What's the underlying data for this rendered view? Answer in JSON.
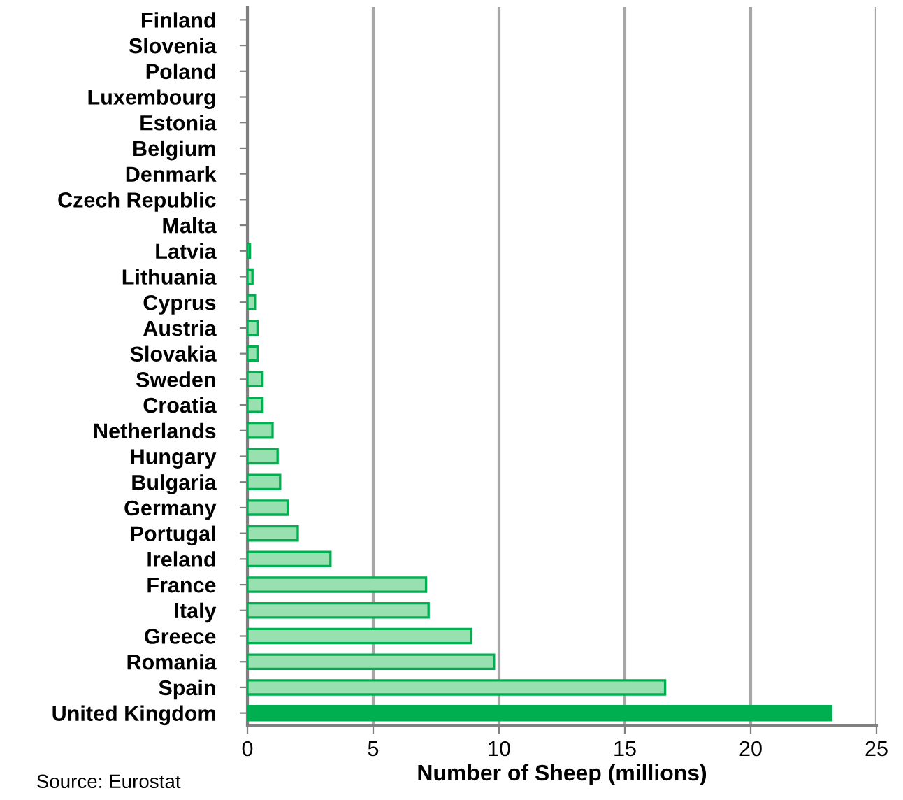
{
  "chart_data": {
    "type": "bar",
    "orientation": "horizontal",
    "xlabel": "Number of Sheep (millions)",
    "categories": [
      "Finland",
      "Slovenia",
      "Poland",
      "Luxembourg",
      "Estonia",
      "Belgium",
      "Denmark",
      "Czech Republic",
      "Malta",
      "Latvia",
      "Lithuania",
      "Cyprus",
      "Austria",
      "Slovakia",
      "Sweden",
      "Croatia",
      "Netherlands",
      "Hungary",
      "Bulgaria",
      "Germany",
      "Portugal",
      "Ireland",
      "France",
      "Italy",
      "Greece",
      "Romania",
      "Spain",
      "United Kingdom"
    ],
    "values": [
      0,
      0,
      0,
      0,
      0,
      0,
      0,
      0,
      null,
      0.1,
      0.2,
      0.3,
      0.4,
      0.4,
      0.6,
      0.6,
      1.0,
      1.2,
      1.3,
      1.6,
      2.0,
      3.3,
      7.1,
      7.2,
      8.9,
      9.8,
      16.6,
      23.2
    ],
    "colors": [
      "#99e0b0",
      "#99e0b0",
      "#99e0b0",
      "#99e0b0",
      "#99e0b0",
      "#99e0b0",
      "#99e0b0",
      "#99e0b0",
      "#99e0b0",
      "#99e0b0",
      "#99e0b0",
      "#99e0b0",
      "#99e0b0",
      "#99e0b0",
      "#99e0b0",
      "#99e0b0",
      "#99e0b0",
      "#99e0b0",
      "#99e0b0",
      "#99e0b0",
      "#99e0b0",
      "#99e0b0",
      "#99e0b0",
      "#99e0b0",
      "#99e0b0",
      "#99e0b0",
      "#99e0b0",
      "#00b050"
    ],
    "xlim": [
      0,
      25
    ],
    "xticks": [
      0,
      5,
      10,
      15,
      20,
      25
    ],
    "grid": "x",
    "annotations": [
      "Source: Eurostat"
    ]
  }
}
